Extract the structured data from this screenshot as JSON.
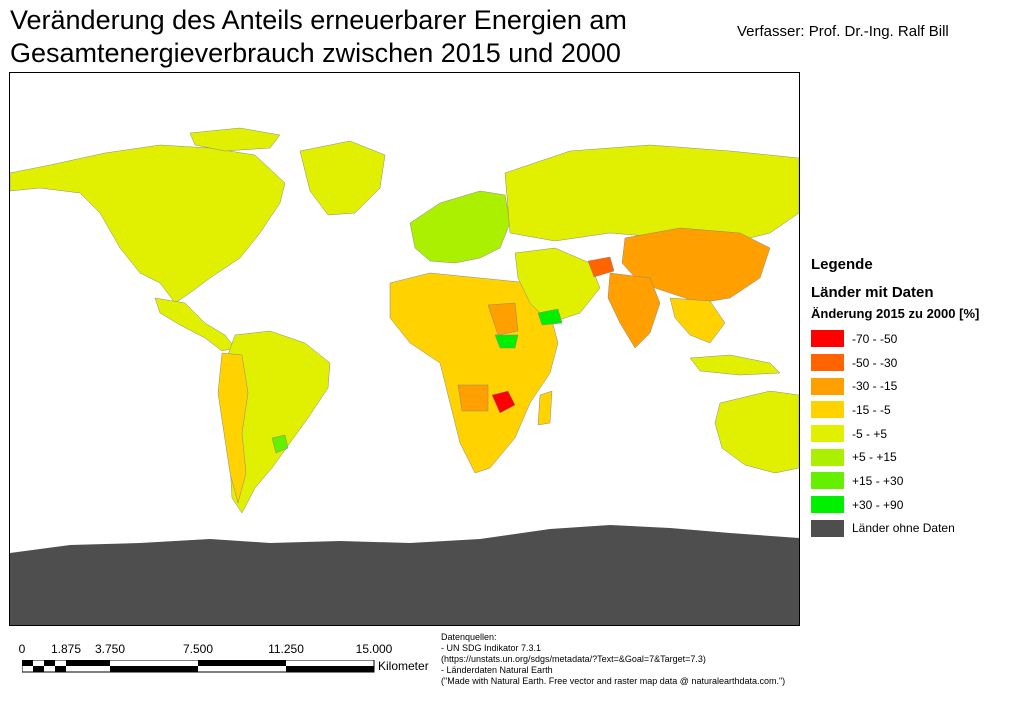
{
  "title": {
    "line1": "Veränderung des Anteils erneuerbarer Energien am",
    "line2": "Gesamtenergieverbrauch zwischen 2015 und 2000"
  },
  "author": "Verfasser: Prof. Dr.-Ing. Ralf Bill",
  "legend": {
    "heading": "Legende",
    "subheading": "Länder mit Daten",
    "field": "Änderung 2015 zu 2000 [%]",
    "classes": [
      {
        "label": "-70 - -50",
        "color": "#ff0000"
      },
      {
        "label": "-50 - -30",
        "color": "#ff6400"
      },
      {
        "label": "-30 - -15",
        "color": "#ff9f00"
      },
      {
        "label": "-15 - -5",
        "color": "#ffd200"
      },
      {
        "label": "-5 - +5",
        "color": "#e1f000"
      },
      {
        "label": "+5 - +15",
        "color": "#aaf000"
      },
      {
        "label": "+15 - +30",
        "color": "#64f000"
      },
      {
        "label": "+30 - +90",
        "color": "#00f000"
      },
      {
        "label": "Länder ohne Daten",
        "color": "#4e4e4e"
      }
    ]
  },
  "scale": {
    "ticks": [
      "0",
      "1.875",
      "3.750",
      "7.500",
      "11.250",
      "15.000"
    ],
    "unit": "Kilometer"
  },
  "sources": [
    "Datenquellen:",
    "- UN SDG Indikator 7.3.1",
    "(https://unstats.un.org/sdgs/metadata/?Text=&Goal=7&Target=7.3)",
    "- Länderdaten Natural Earth",
    "(\"Made with Natural Earth. Free vector and raster map data @ naturalearthdata.com.\")"
  ]
}
